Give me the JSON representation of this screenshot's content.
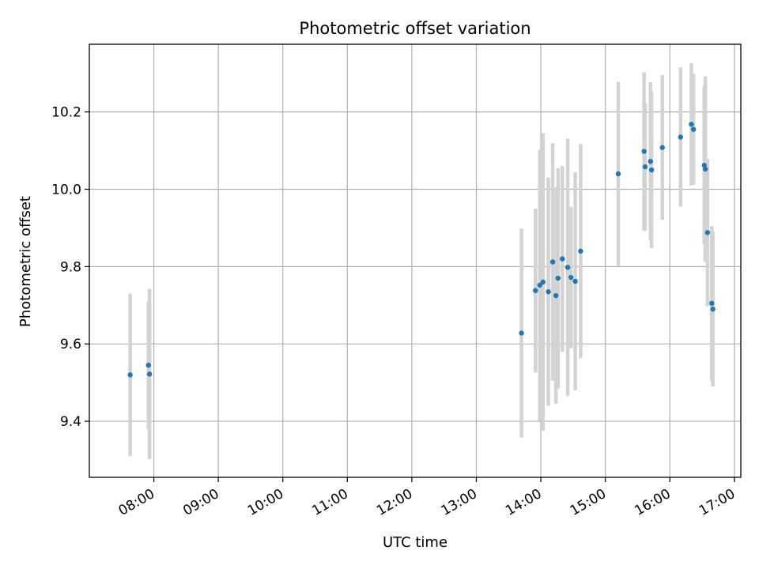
{
  "chart_data": {
    "type": "scatter",
    "title": "Photometric offset variation",
    "xlabel": "UTC time",
    "ylabel": "Photometric offset",
    "x_tick_labels": [
      "08:00",
      "09:00",
      "10:00",
      "11:00",
      "12:00",
      "13:00",
      "14:00",
      "15:00",
      "16:00",
      "17:00"
    ],
    "y_tick_labels": [
      "9.4",
      "9.6",
      "9.8",
      "10.0",
      "10.2"
    ],
    "y_ticks": [
      9.4,
      9.6,
      9.8,
      10.0,
      10.2
    ],
    "xlim_hours": [
      7.0,
      17.1
    ],
    "ylim": [
      9.255,
      10.375
    ],
    "grid": true,
    "colors": {
      "points": "#1f77b4",
      "errorbars": "#d3d3d3",
      "grid": "#b0b0b0",
      "axes": "#000000"
    },
    "series": [
      {
        "points": [
          {
            "x": "07:38",
            "y": 9.52,
            "yerr": 0.21
          },
          {
            "x": "07:55",
            "y": 9.545,
            "yerr": 0.165
          },
          {
            "x": "07:56",
            "y": 9.522,
            "yerr": 0.22
          },
          {
            "x": "13:42",
            "y": 9.628,
            "yerr": 0.27
          },
          {
            "x": "13:55",
            "y": 9.738,
            "yerr": 0.212
          },
          {
            "x": "13:59",
            "y": 9.752,
            "yerr": 0.35
          },
          {
            "x": "14:02",
            "y": 9.76,
            "yerr": 0.385
          },
          {
            "x": "14:07",
            "y": 9.735,
            "yerr": 0.295
          },
          {
            "x": "14:11",
            "y": 9.812,
            "yerr": 0.307
          },
          {
            "x": "14:14",
            "y": 9.725,
            "yerr": 0.28
          },
          {
            "x": "14:16",
            "y": 9.77,
            "yerr": 0.285
          },
          {
            "x": "14:20",
            "y": 9.82,
            "yerr": 0.24
          },
          {
            "x": "14:25",
            "y": 9.798,
            "yerr": 0.333
          },
          {
            "x": "14:28",
            "y": 9.772,
            "yerr": 0.183
          },
          {
            "x": "14:32",
            "y": 9.762,
            "yerr": 0.282
          },
          {
            "x": "14:37",
            "y": 9.84,
            "yerr": 0.277
          },
          {
            "x": "15:12",
            "y": 10.04,
            "yerr": 0.238
          },
          {
            "x": "15:36",
            "y": 10.098,
            "yerr": 0.205
          },
          {
            "x": "15:37",
            "y": 10.058,
            "yerr": 0.165
          },
          {
            "x": "15:42",
            "y": 10.072,
            "yerr": 0.205
          },
          {
            "x": "15:43",
            "y": 10.05,
            "yerr": 0.202
          },
          {
            "x": "15:53",
            "y": 10.108,
            "yerr": 0.187
          },
          {
            "x": "16:10",
            "y": 10.135,
            "yerr": 0.18
          },
          {
            "x": "16:20",
            "y": 10.168,
            "yerr": 0.158
          },
          {
            "x": "16:22",
            "y": 10.155,
            "yerr": 0.143
          },
          {
            "x": "16:32",
            "y": 10.062,
            "yerr": 0.205
          },
          {
            "x": "16:33",
            "y": 10.052,
            "yerr": 0.24
          },
          {
            "x": "16:35",
            "y": 9.888,
            "yerr": 0.19
          },
          {
            "x": "16:39",
            "y": 9.705,
            "yerr": 0.2
          },
          {
            "x": "16:40",
            "y": 9.69,
            "yerr": 0.2
          }
        ]
      }
    ]
  }
}
